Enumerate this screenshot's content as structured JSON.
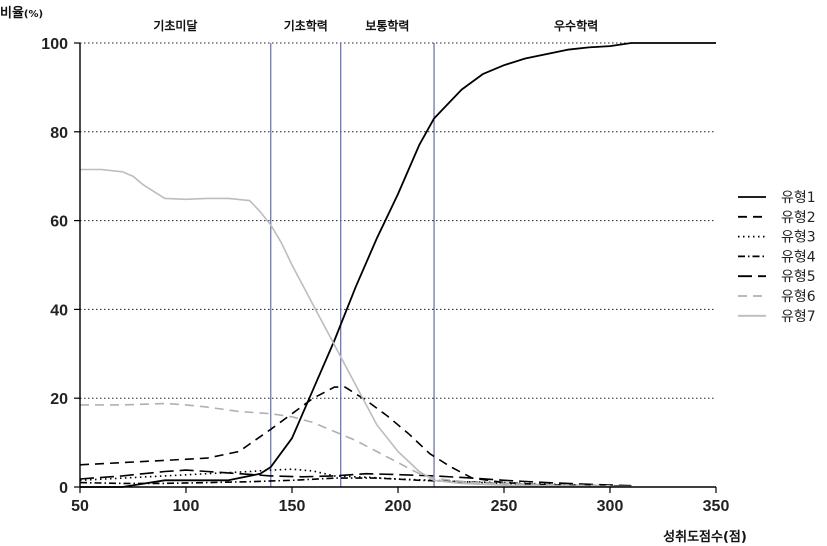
{
  "chart_data": {
    "type": "line",
    "ylabel": "비율",
    "ylabel_unit": "(%)",
    "xlabel": "성취도점수(점)",
    "xlim": [
      50,
      350
    ],
    "ylim": [
      0,
      100
    ],
    "xticks": [
      50,
      100,
      150,
      200,
      250,
      300,
      350
    ],
    "yticks": [
      0,
      20,
      40,
      60,
      80,
      100
    ],
    "grid": "horizontal-dotted",
    "legend_position": "right",
    "cutoffs": [
      140,
      173,
      217
    ],
    "regions": [
      {
        "label": "기초미달",
        "x": 95
      },
      {
        "label": "기초학력",
        "x": 156.5
      },
      {
        "label": "보통학력",
        "x": 195
      },
      {
        "label": "우수학력",
        "x": 284
      }
    ],
    "series": [
      {
        "name": "유형1",
        "style": "solid",
        "color": "#000000",
        "x": [
          50,
          70,
          90,
          100,
          120,
          135,
          140,
          150,
          160,
          170,
          180,
          190,
          200,
          210,
          217,
          230,
          240,
          250,
          260,
          270,
          280,
          290,
          300,
          310,
          320,
          350
        ],
        "y": [
          0,
          0,
          1.5,
          1.5,
          1.5,
          3,
          4.5,
          11,
          22,
          33,
          45,
          56,
          66,
          77,
          83,
          89.5,
          93,
          95,
          96.5,
          97.5,
          98.5,
          99,
          99.3,
          100,
          100,
          100
        ]
      },
      {
        "name": "유형2",
        "style": "dashed",
        "color": "#000000",
        "x": [
          50,
          70,
          90,
          110,
          125,
          140,
          150,
          160,
          170,
          175,
          185,
          195,
          205,
          215,
          225,
          235,
          250,
          270,
          290,
          310
        ],
        "y": [
          5,
          5.5,
          6,
          6.5,
          8,
          13,
          16.5,
          20,
          22.5,
          22.5,
          19.5,
          16,
          12,
          7.5,
          4.5,
          2,
          1,
          0.5,
          0.2,
          0.2
        ]
      },
      {
        "name": "유형3",
        "style": "dotted",
        "color": "#000000",
        "x": [
          50,
          70,
          90,
          110,
          130,
          140,
          150,
          160,
          170,
          185,
          200,
          217,
          230,
          250,
          280,
          310
        ],
        "y": [
          1.5,
          2,
          2.5,
          3,
          3.5,
          3.8,
          4,
          3.6,
          2.5,
          2.2,
          1.8,
          1.5,
          1.2,
          1,
          0.5,
          0.2
        ]
      },
      {
        "name": "유형4",
        "style": "dash-dot",
        "color": "#000000",
        "x": [
          50,
          70,
          90,
          110,
          130,
          150,
          170,
          190,
          210,
          230,
          250,
          280,
          310
        ],
        "y": [
          1,
          0.8,
          0.8,
          1,
          1.2,
          1.5,
          2,
          2,
          1.5,
          1.2,
          0.8,
          0.4,
          0.2
        ]
      },
      {
        "name": "유형5",
        "style": "long-dash",
        "color": "#000000",
        "x": [
          50,
          70,
          90,
          100,
          110,
          125,
          140,
          155,
          170,
          185,
          200,
          217,
          235,
          250,
          270,
          290,
          310
        ],
        "y": [
          1.8,
          2.5,
          3.5,
          3.8,
          3.5,
          3,
          2.5,
          2.3,
          2.5,
          3,
          2.8,
          2.5,
          2,
          1.5,
          1,
          0.6,
          0.3
        ]
      },
      {
        "name": "유형6",
        "style": "dashed",
        "color": "#b0b0b0",
        "x": [
          50,
          70,
          90,
          100,
          110,
          125,
          140,
          150,
          160,
          170,
          180,
          190,
          200,
          210,
          217,
          225,
          235,
          250,
          270,
          300
        ],
        "y": [
          18.5,
          18.5,
          18.8,
          18.5,
          18,
          17,
          16.5,
          15.8,
          14.5,
          12.5,
          10.5,
          8,
          5.5,
          3,
          2,
          1.5,
          1,
          0.8,
          0.5,
          0.3
        ]
      },
      {
        "name": "유형7",
        "style": "solid",
        "color": "#bdbdbd",
        "x": [
          50,
          60,
          70,
          75,
          80,
          90,
          100,
          110,
          120,
          130,
          135,
          140,
          145,
          150,
          160,
          170,
          180,
          190,
          200,
          210,
          217,
          230,
          250,
          280,
          310
        ],
        "y": [
          71.5,
          71.5,
          71,
          70,
          68,
          65,
          64.8,
          65,
          65,
          64.5,
          62,
          59,
          55,
          50,
          41,
          32,
          23,
          14,
          8,
          3.5,
          1.5,
          0.8,
          0.4,
          0.2,
          0.1
        ]
      }
    ]
  }
}
